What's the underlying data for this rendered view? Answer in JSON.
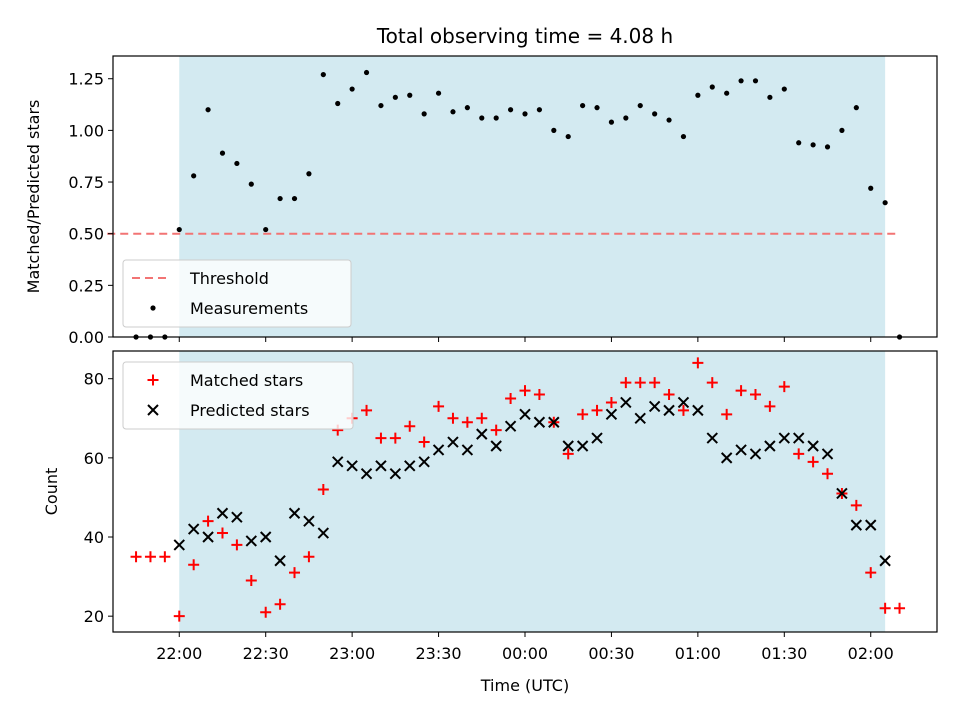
{
  "title": "Total observing time = 4.08 h",
  "chart_data": [
    {
      "type": "scatter",
      "panel": "top",
      "ylabel": "Matched/Predicted stars",
      "ylim": [
        0.0,
        1.36
      ],
      "yticks": [
        "0.00",
        "0.25",
        "0.50",
        "0.75",
        "1.00",
        "1.25"
      ],
      "ytick_values": [
        0.0,
        0.25,
        0.5,
        0.75,
        1.0,
        1.25
      ],
      "shaded_span": {
        "from": "22:00",
        "to": "02:05",
        "color": "#d3eaf1"
      },
      "threshold": {
        "name": "Threshold",
        "value": 0.5,
        "from": "21:35",
        "to": "02:10",
        "color": "#f27474"
      },
      "legend": {
        "placement": "lower-left",
        "entries": [
          "Threshold",
          "Measurements"
        ]
      },
      "series": [
        {
          "name": "Measurements",
          "marker": "dot",
          "color": "#000000",
          "x": [
            "21:45",
            "21:50",
            "21:55",
            "22:00",
            "22:05",
            "22:10",
            "22:15",
            "22:20",
            "22:25",
            "22:30",
            "22:35",
            "22:40",
            "22:45",
            "22:50",
            "22:55",
            "23:00",
            "23:05",
            "23:10",
            "23:15",
            "23:20",
            "23:25",
            "23:30",
            "23:35",
            "23:40",
            "23:45",
            "23:50",
            "23:55",
            "00:00",
            "00:05",
            "00:10",
            "00:15",
            "00:20",
            "00:25",
            "00:30",
            "00:35",
            "00:40",
            "00:45",
            "00:50",
            "00:55",
            "01:00",
            "01:05",
            "01:10",
            "01:15",
            "01:20",
            "01:25",
            "01:30",
            "01:35",
            "01:40",
            "01:45",
            "01:50",
            "01:55",
            "02:00",
            "02:05",
            "02:10"
          ],
          "values": [
            0.0,
            0.0,
            0.0,
            0.52,
            0.78,
            1.1,
            0.89,
            0.84,
            0.74,
            0.52,
            0.67,
            0.67,
            0.79,
            1.27,
            1.13,
            1.2,
            1.28,
            1.12,
            1.16,
            1.17,
            1.08,
            1.18,
            1.09,
            1.11,
            1.06,
            1.06,
            1.1,
            1.08,
            1.1,
            1.0,
            0.97,
            1.12,
            1.11,
            1.04,
            1.06,
            1.12,
            1.08,
            1.05,
            0.97,
            1.17,
            1.21,
            1.18,
            1.24,
            1.24,
            1.16,
            1.2,
            0.94,
            0.93,
            0.92,
            1.0,
            1.11,
            0.72,
            0.65,
            0.0
          ]
        }
      ]
    },
    {
      "type": "scatter",
      "panel": "bottom",
      "xlabel": "Time (UTC)",
      "ylabel": "Count",
      "ylim": [
        16,
        87
      ],
      "yticks": [
        "20",
        "40",
        "60",
        "80"
      ],
      "ytick_values": [
        20,
        40,
        60,
        80
      ],
      "xticks": [
        "22:00",
        "22:30",
        "23:00",
        "23:30",
        "00:00",
        "00:30",
        "01:00",
        "01:30",
        "02:00"
      ],
      "xlim": [
        "21:37",
        "02:23"
      ],
      "shaded_span": {
        "from": "22:00",
        "to": "02:05",
        "color": "#d3eaf1"
      },
      "legend": {
        "placement": "upper-left",
        "entries": [
          "Matched stars",
          "Predicted stars"
        ]
      },
      "series": [
        {
          "name": "Matched stars",
          "marker": "plus",
          "color": "#ff0000",
          "x": [
            "21:45",
            "21:50",
            "21:55",
            "22:00",
            "22:05",
            "22:10",
            "22:15",
            "22:20",
            "22:25",
            "22:30",
            "22:35",
            "22:40",
            "22:45",
            "22:50",
            "22:55",
            "23:00",
            "23:05",
            "23:10",
            "23:15",
            "23:20",
            "23:25",
            "23:30",
            "23:35",
            "23:40",
            "23:45",
            "23:50",
            "23:55",
            "00:00",
            "00:05",
            "00:10",
            "00:15",
            "00:20",
            "00:25",
            "00:30",
            "00:35",
            "00:40",
            "00:45",
            "00:50",
            "00:55",
            "01:00",
            "01:05",
            "01:10",
            "01:15",
            "01:20",
            "01:25",
            "01:30",
            "01:35",
            "01:40",
            "01:45",
            "01:50",
            "01:55",
            "02:00",
            "02:05",
            "02:10"
          ],
          "values": [
            35,
            35,
            35,
            20,
            33,
            44,
            41,
            38,
            29,
            21,
            23,
            31,
            35,
            52,
            67,
            70,
            72,
            65,
            65,
            68,
            64,
            73,
            70,
            69,
            70,
            67,
            75,
            77,
            76,
            69,
            61,
            71,
            72,
            74,
            79,
            79,
            79,
            76,
            72,
            84,
            79,
            71,
            77,
            76,
            73,
            78,
            61,
            59,
            56,
            51,
            48,
            31,
            22,
            22
          ]
        },
        {
          "name": "Predicted stars",
          "marker": "x",
          "color": "#000000",
          "x": [
            "22:00",
            "22:05",
            "22:10",
            "22:15",
            "22:20",
            "22:25",
            "22:30",
            "22:35",
            "22:40",
            "22:45",
            "22:50",
            "22:55",
            "23:00",
            "23:05",
            "23:10",
            "23:15",
            "23:20",
            "23:25",
            "23:30",
            "23:35",
            "23:40",
            "23:45",
            "23:50",
            "23:55",
            "00:00",
            "00:05",
            "00:10",
            "00:15",
            "00:20",
            "00:25",
            "00:30",
            "00:35",
            "00:40",
            "00:45",
            "00:50",
            "00:55",
            "01:00",
            "01:05",
            "01:10",
            "01:15",
            "01:20",
            "01:25",
            "01:30",
            "01:35",
            "01:40",
            "01:45",
            "01:50",
            "01:55",
            "02:00",
            "02:05"
          ],
          "values": [
            38,
            42,
            40,
            46,
            45,
            39,
            40,
            34,
            46,
            44,
            41,
            59,
            58,
            56,
            58,
            56,
            58,
            59,
            62,
            64,
            62,
            66,
            63,
            68,
            71,
            69,
            69,
            63,
            63,
            65,
            71,
            74,
            70,
            73,
            72,
            74,
            72,
            65,
            60,
            62,
            61,
            63,
            65,
            65,
            63,
            61,
            51,
            43,
            43,
            34
          ]
        }
      ]
    }
  ]
}
